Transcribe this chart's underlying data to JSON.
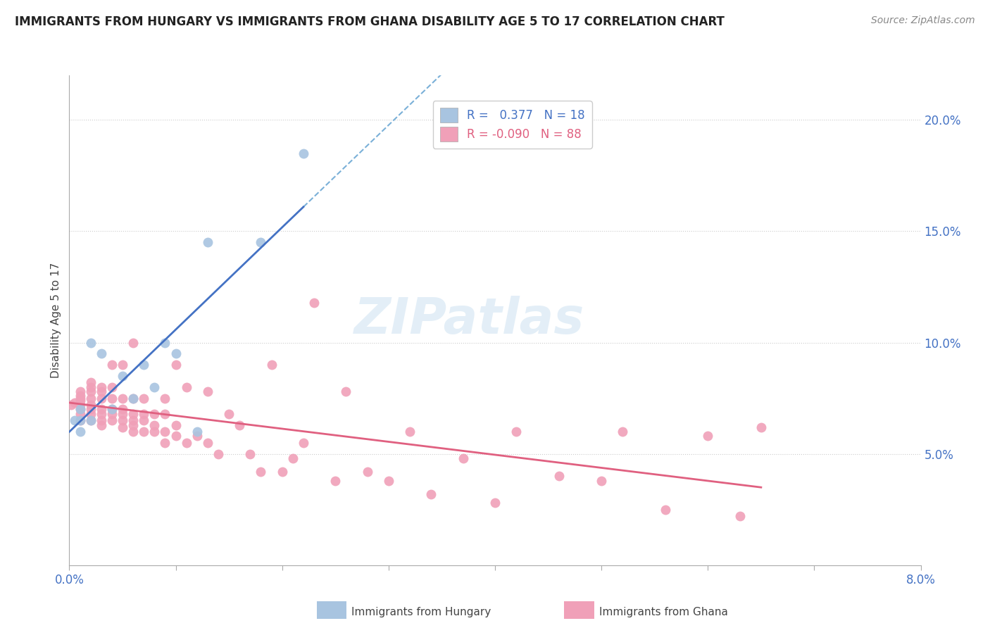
{
  "title": "IMMIGRANTS FROM HUNGARY VS IMMIGRANTS FROM GHANA DISABILITY AGE 5 TO 17 CORRELATION CHART",
  "source": "Source: ZipAtlas.com",
  "ylabel": "Disability Age 5 to 17",
  "xlim": [
    0.0,
    0.08
  ],
  "ylim": [
    0.0,
    0.22
  ],
  "y_ticks": [
    0.05,
    0.1,
    0.15,
    0.2
  ],
  "y_tick_labels": [
    "5.0%",
    "10.0%",
    "15.0%",
    "20.0%"
  ],
  "x_tick_positions": [
    0.0,
    0.01,
    0.02,
    0.03,
    0.04,
    0.05,
    0.06,
    0.07,
    0.08
  ],
  "x_tick_labels": [
    "0.0%",
    "",
    "",
    "",
    "",
    "",
    "",
    "",
    "8.0%"
  ],
  "color_hungary": "#a8c4e0",
  "color_ghana": "#f0a0b8",
  "line_color_hungary": "#4472c4",
  "line_color_ghana": "#e06080",
  "dashed_color": "#7ab0d8",
  "background_color": "#ffffff",
  "hungary_scatter_x": [
    0.0005,
    0.001,
    0.001,
    0.001,
    0.002,
    0.002,
    0.003,
    0.004,
    0.005,
    0.006,
    0.007,
    0.008,
    0.009,
    0.01,
    0.012,
    0.013,
    0.018,
    0.022
  ],
  "hungary_scatter_y": [
    0.065,
    0.06,
    0.065,
    0.07,
    0.065,
    0.1,
    0.095,
    0.07,
    0.085,
    0.075,
    0.09,
    0.08,
    0.1,
    0.095,
    0.06,
    0.145,
    0.145,
    0.185
  ],
  "ghana_scatter_x": [
    0.0002,
    0.0005,
    0.001,
    0.001,
    0.001,
    0.001,
    0.001,
    0.001,
    0.001,
    0.001,
    0.002,
    0.002,
    0.002,
    0.002,
    0.002,
    0.002,
    0.002,
    0.002,
    0.003,
    0.003,
    0.003,
    0.003,
    0.003,
    0.003,
    0.003,
    0.004,
    0.004,
    0.004,
    0.004,
    0.004,
    0.004,
    0.005,
    0.005,
    0.005,
    0.005,
    0.005,
    0.005,
    0.006,
    0.006,
    0.006,
    0.006,
    0.006,
    0.006,
    0.007,
    0.007,
    0.007,
    0.007,
    0.008,
    0.008,
    0.008,
    0.009,
    0.009,
    0.009,
    0.009,
    0.01,
    0.01,
    0.01,
    0.011,
    0.011,
    0.012,
    0.013,
    0.013,
    0.014,
    0.015,
    0.016,
    0.017,
    0.018,
    0.019,
    0.02,
    0.021,
    0.022,
    0.023,
    0.025,
    0.026,
    0.028,
    0.03,
    0.032,
    0.034,
    0.037,
    0.04,
    0.042,
    0.046,
    0.05,
    0.052,
    0.056,
    0.06,
    0.063,
    0.065
  ],
  "ghana_scatter_y": [
    0.072,
    0.073,
    0.065,
    0.068,
    0.07,
    0.072,
    0.074,
    0.075,
    0.076,
    0.078,
    0.065,
    0.068,
    0.07,
    0.072,
    0.075,
    0.078,
    0.08,
    0.082,
    0.063,
    0.065,
    0.068,
    0.07,
    0.075,
    0.078,
    0.08,
    0.065,
    0.068,
    0.07,
    0.075,
    0.08,
    0.09,
    0.062,
    0.065,
    0.068,
    0.07,
    0.075,
    0.09,
    0.06,
    0.063,
    0.065,
    0.068,
    0.075,
    0.1,
    0.06,
    0.065,
    0.068,
    0.075,
    0.06,
    0.063,
    0.068,
    0.055,
    0.06,
    0.068,
    0.075,
    0.058,
    0.063,
    0.09,
    0.055,
    0.08,
    0.058,
    0.055,
    0.078,
    0.05,
    0.068,
    0.063,
    0.05,
    0.042,
    0.09,
    0.042,
    0.048,
    0.055,
    0.118,
    0.038,
    0.078,
    0.042,
    0.038,
    0.06,
    0.032,
    0.048,
    0.028,
    0.06,
    0.04,
    0.038,
    0.06,
    0.025,
    0.058,
    0.022,
    0.062
  ]
}
